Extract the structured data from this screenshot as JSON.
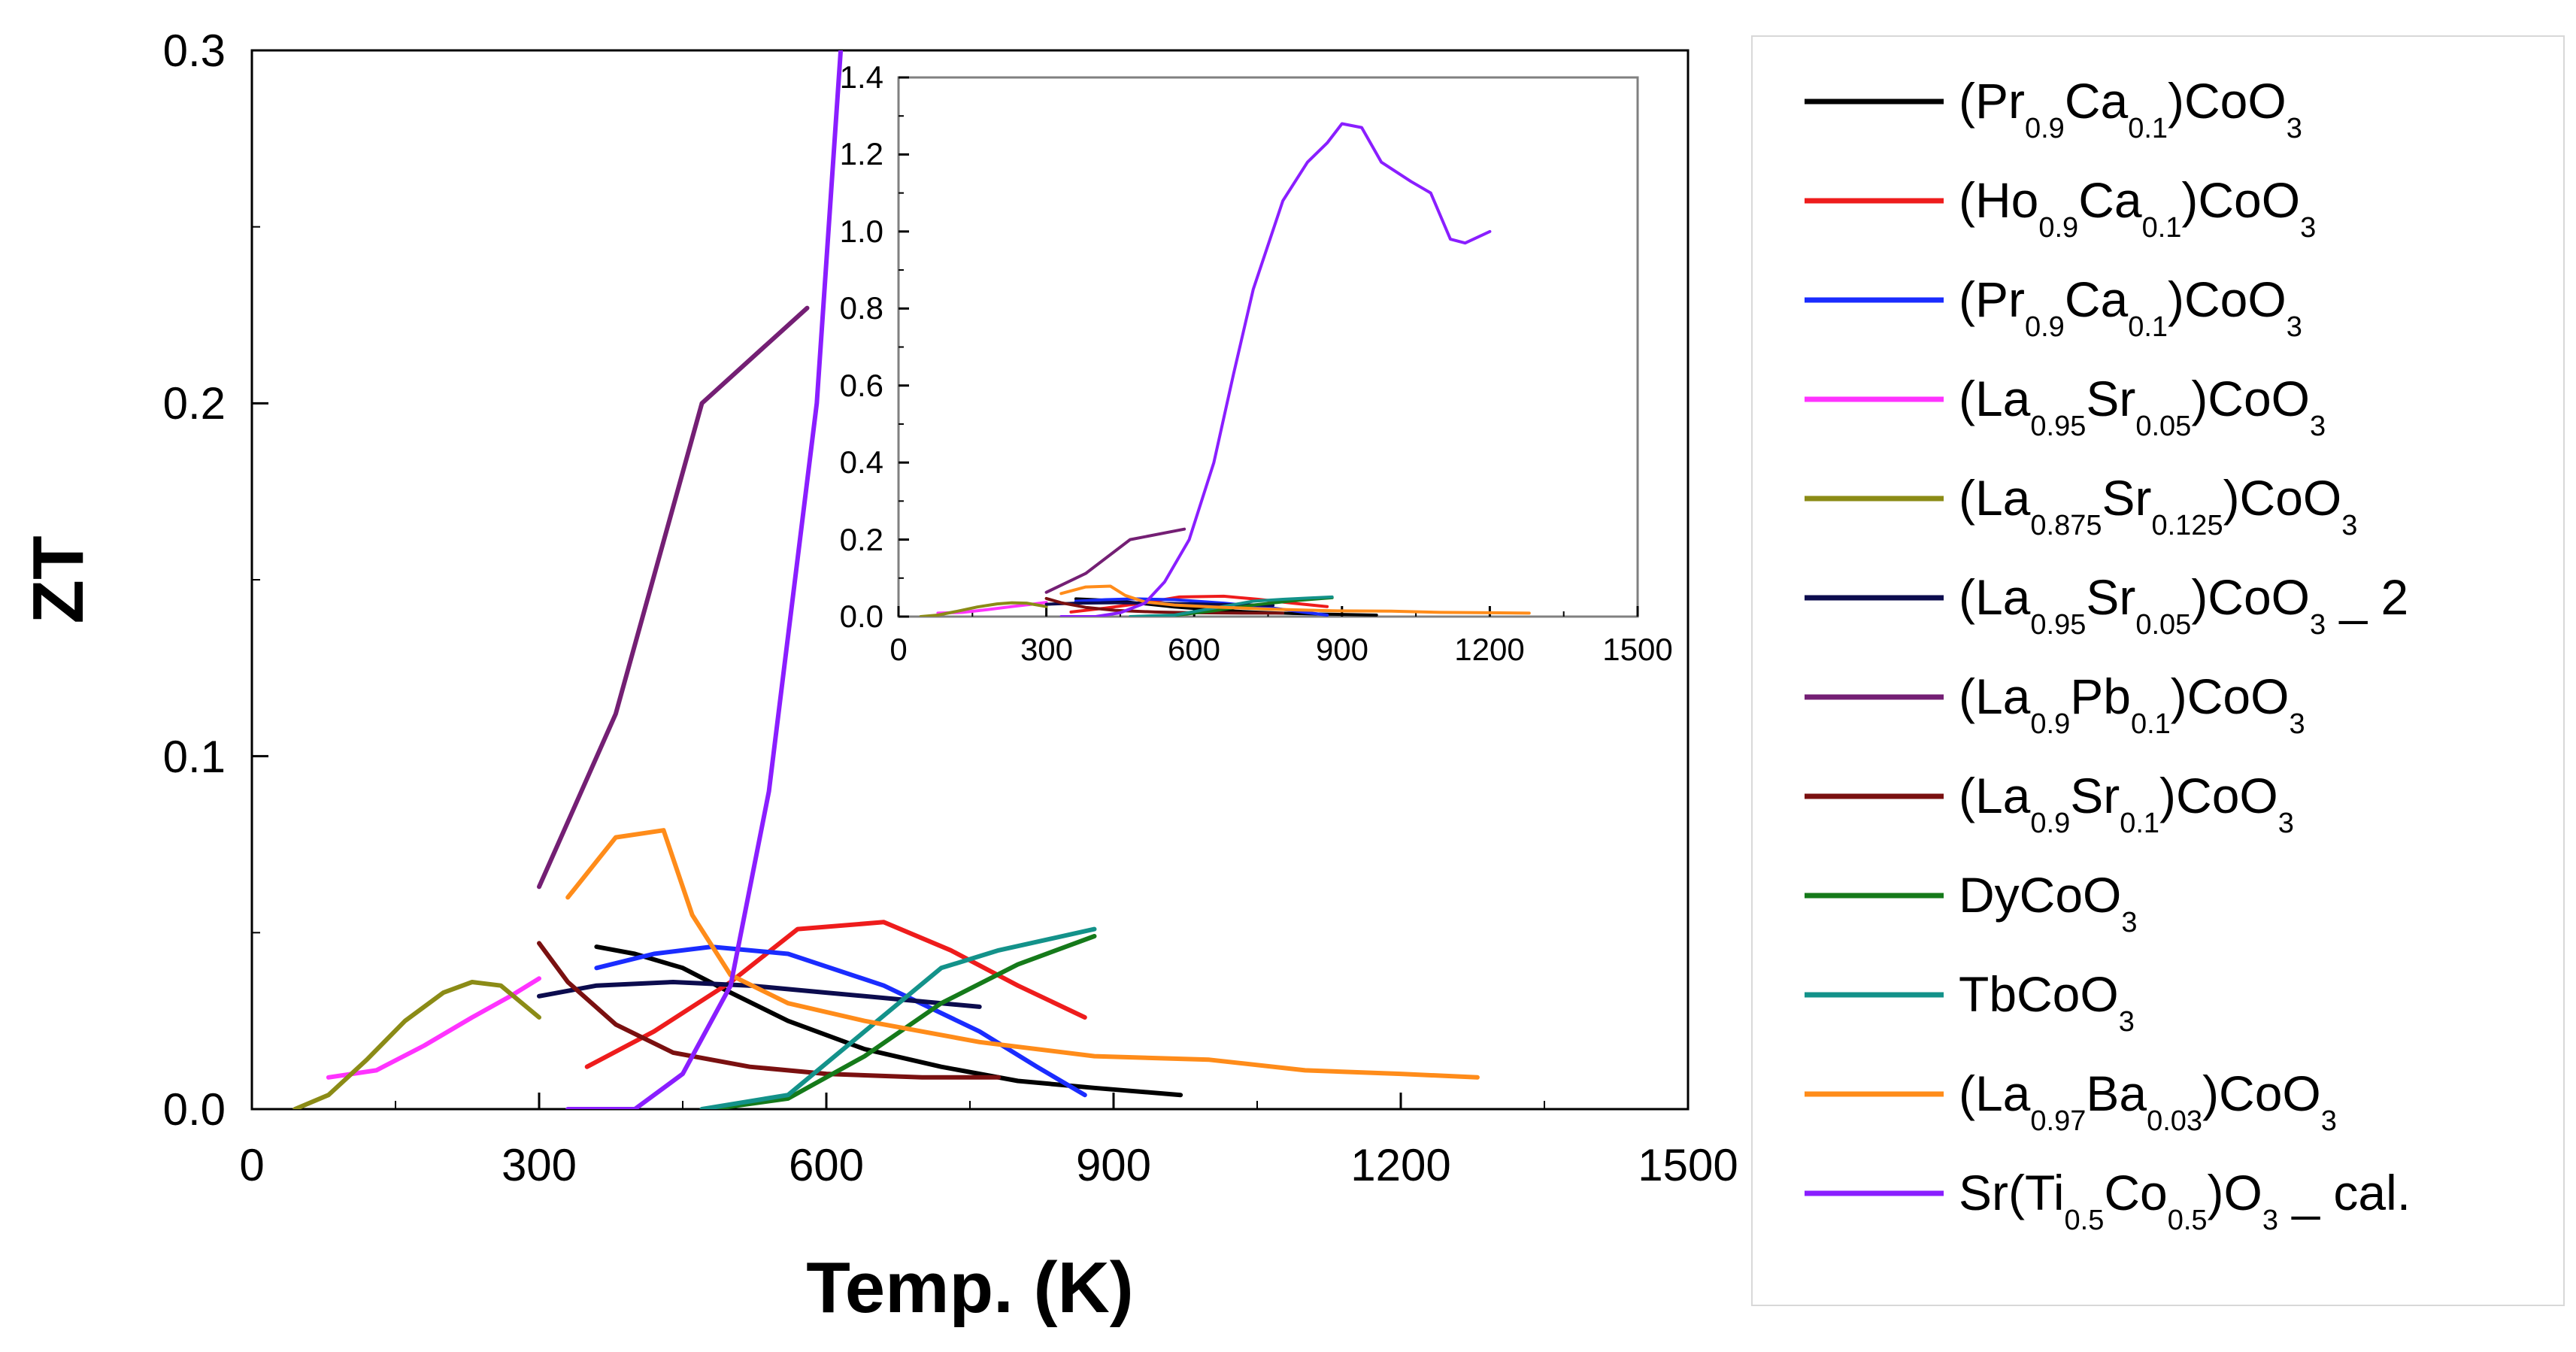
{
  "chart_data": [
    {
      "type": "line",
      "name": "main",
      "xlabel": "Temp. (K)",
      "ylabel": "ZT",
      "xlim": [
        0,
        1500
      ],
      "ylim": [
        0,
        0.3
      ],
      "xticks": [
        0,
        300,
        600,
        900,
        1200,
        1500
      ],
      "yticks": [
        0.0,
        0.1,
        0.2,
        0.3
      ],
      "xtick_labels": [
        "0",
        "300",
        "600",
        "900",
        "1200",
        "1500"
      ],
      "ytick_labels": [
        "0.0",
        "0.1",
        "0.2",
        "0.3"
      ],
      "grid": false
    },
    {
      "type": "line",
      "name": "inset",
      "xlim": [
        0,
        1500
      ],
      "ylim": [
        0,
        1.4
      ],
      "xticks": [
        0,
        300,
        600,
        900,
        1200,
        1500
      ],
      "yticks": [
        0.0,
        0.2,
        0.4,
        0.6,
        0.8,
        1.0,
        1.2,
        1.4
      ],
      "xtick_labels": [
        "0",
        "300",
        "600",
        "900",
        "1200",
        "1500"
      ],
      "ytick_labels": [
        "0.0",
        "0.2",
        "0.4",
        "0.6",
        "0.8",
        "1.0",
        "1.2",
        "1.4"
      ],
      "grid": false
    }
  ],
  "series": [
    {
      "label": "(Pr0.9Ca0.1)CoO3",
      "color": "#000000",
      "legend_parts": [
        [
          "(Pr",
          "n"
        ],
        [
          "0.9",
          "s"
        ],
        [
          "Ca",
          "n"
        ],
        [
          "0.1",
          "s"
        ],
        [
          ")CoO",
          "n"
        ],
        [
          "3",
          "s"
        ]
      ],
      "x": [
        360,
        400,
        450,
        500,
        560,
        640,
        720,
        800,
        880,
        970
      ],
      "y": [
        0.046,
        0.044,
        0.04,
        0.033,
        0.025,
        0.017,
        0.012,
        0.008,
        0.006,
        0.004
      ]
    },
    {
      "label": "(Ho0.9Ca0.1)CoO3",
      "color": "#ee1c1c",
      "legend_parts": [
        [
          "(Ho",
          "n"
        ],
        [
          "0.9",
          "s"
        ],
        [
          "Ca",
          "n"
        ],
        [
          "0.1",
          "s"
        ],
        [
          ")CoO",
          "n"
        ],
        [
          "3",
          "s"
        ]
      ],
      "x": [
        350,
        420,
        500,
        570,
        660,
        730,
        800,
        870
      ],
      "y": [
        0.012,
        0.022,
        0.036,
        0.051,
        0.053,
        0.045,
        0.035,
        0.026
      ]
    },
    {
      "label": "(Pr0.9Ca0.1)CoO3",
      "color": "#1a2cff",
      "legend_parts": [
        [
          "(Pr",
          "n"
        ],
        [
          "0.9",
          "s"
        ],
        [
          "Ca",
          "n"
        ],
        [
          "0.1",
          "s"
        ],
        [
          ")CoO",
          "n"
        ],
        [
          "3",
          "s"
        ]
      ],
      "x": [
        360,
        420,
        480,
        560,
        660,
        760,
        820,
        870
      ],
      "y": [
        0.04,
        0.044,
        0.046,
        0.044,
        0.035,
        0.022,
        0.012,
        0.004
      ]
    },
    {
      "label": "(La0.95Sr0.05)CoO3",
      "color": "#ff33ff",
      "legend_parts": [
        [
          "(La",
          "n"
        ],
        [
          "0.95",
          "s"
        ],
        [
          "Sr",
          "n"
        ],
        [
          "0.05",
          "s"
        ],
        [
          ")CoO",
          "n"
        ],
        [
          "3",
          "s"
        ]
      ],
      "x": [
        80,
        130,
        180,
        230,
        270,
        300
      ],
      "y": [
        0.009,
        0.011,
        0.018,
        0.026,
        0.032,
        0.037
      ]
    },
    {
      "label": "(La0.875Sr0.125)CoO3",
      "color": "#8b8b16",
      "legend_parts": [
        [
          "(La",
          "n"
        ],
        [
          "0.875",
          "s"
        ],
        [
          "Sr",
          "n"
        ],
        [
          "0.125",
          "s"
        ],
        [
          ")CoO",
          "n"
        ],
        [
          "3",
          "s"
        ]
      ],
      "x": [
        45,
        80,
        120,
        160,
        200,
        230,
        260,
        300
      ],
      "y": [
        0.0,
        0.004,
        0.014,
        0.025,
        0.033,
        0.036,
        0.035,
        0.026
      ]
    },
    {
      "label": "(La0.95Sr0.05)CoO3 _ 2",
      "color": "#0c0c4e",
      "legend_parts": [
        [
          "(La",
          "n"
        ],
        [
          "0.95",
          "s"
        ],
        [
          "Sr",
          "n"
        ],
        [
          "0.05",
          "s"
        ],
        [
          ")CoO",
          "n"
        ],
        [
          "3",
          "s"
        ],
        [
          " _ 2",
          "n"
        ]
      ],
      "x": [
        300,
        360,
        440,
        520,
        600,
        680,
        760
      ],
      "y": [
        0.032,
        0.035,
        0.036,
        0.035,
        0.033,
        0.031,
        0.029
      ]
    },
    {
      "label": "(La0.9Pb0.1)CoO3",
      "color": "#741f74",
      "legend_parts": [
        [
          "(La",
          "n"
        ],
        [
          "0.9",
          "s"
        ],
        [
          "Pb",
          "n"
        ],
        [
          "0.1",
          "s"
        ],
        [
          ")CoO",
          "n"
        ],
        [
          "3",
          "s"
        ]
      ],
      "x": [
        300,
        380,
        470,
        580
      ],
      "y": [
        0.063,
        0.112,
        0.2,
        0.227
      ]
    },
    {
      "label": "(La0.9Sr0.1)CoO3",
      "color": "#7a1010",
      "legend_parts": [
        [
          "(La",
          "n"
        ],
        [
          "0.9",
          "s"
        ],
        [
          "Sr",
          "n"
        ],
        [
          "0.1",
          "s"
        ],
        [
          ")CoO",
          "n"
        ],
        [
          "3",
          "s"
        ]
      ],
      "x": [
        300,
        330,
        380,
        440,
        520,
        600,
        700,
        780
      ],
      "y": [
        0.047,
        0.036,
        0.024,
        0.016,
        0.012,
        0.01,
        0.009,
        0.009
      ]
    },
    {
      "label": "DyCoO3",
      "color": "#157a1a",
      "legend_parts": [
        [
          "DyCoO",
          "n"
        ],
        [
          "3",
          "s"
        ]
      ],
      "x": [
        480,
        560,
        640,
        720,
        800,
        880
      ],
      "y": [
        0.0,
        0.003,
        0.015,
        0.03,
        0.041,
        0.049
      ]
    },
    {
      "label": "TbCoO3",
      "color": "#13928a",
      "legend_parts": [
        [
          "TbCoO",
          "n"
        ],
        [
          "3",
          "s"
        ]
      ],
      "x": [
        470,
        560,
        640,
        720,
        780,
        830,
        880
      ],
      "y": [
        0.0,
        0.004,
        0.022,
        0.04,
        0.045,
        0.048,
        0.051
      ]
    },
    {
      "label": "(La0.97Ba0.03)CoO3",
      "color": "#ff8c1a",
      "legend_parts": [
        [
          "(La",
          "n"
        ],
        [
          "0.97",
          "s"
        ],
        [
          "Ba",
          "n"
        ],
        [
          "0.03",
          "s"
        ],
        [
          ")CoO",
          "n"
        ],
        [
          "3",
          "s"
        ]
      ],
      "x": [
        330,
        380,
        430,
        460,
        500,
        560,
        640,
        760,
        880,
        1000,
        1100,
        1200,
        1280
      ],
      "y": [
        0.06,
        0.077,
        0.079,
        0.055,
        0.038,
        0.03,
        0.025,
        0.019,
        0.015,
        0.014,
        0.011,
        0.01,
        0.009
      ]
    },
    {
      "label": "Sr(Ti0.5Co0.5)O3 _ cal.",
      "color": "#8a1eff",
      "legend_parts": [
        [
          "Sr(Ti",
          "n"
        ],
        [
          "0.5",
          "s"
        ],
        [
          "Co",
          "n"
        ],
        [
          "0.5",
          "s"
        ],
        [
          ")O",
          "n"
        ],
        [
          "3",
          "s"
        ],
        [
          " _ cal.",
          "n"
        ]
      ],
      "x": [
        330,
        400,
        450,
        500,
        540,
        590,
        640,
        680,
        720,
        780,
        830,
        870,
        900,
        940,
        980,
        1040,
        1080,
        1120,
        1150,
        1200
      ],
      "y": [
        0.0,
        0.0,
        0.01,
        0.035,
        0.09,
        0.2,
        0.4,
        0.63,
        0.85,
        1.08,
        1.18,
        1.23,
        1.28,
        1.27,
        1.18,
        1.13,
        1.1,
        0.98,
        0.97,
        1.0
      ]
    }
  ]
}
